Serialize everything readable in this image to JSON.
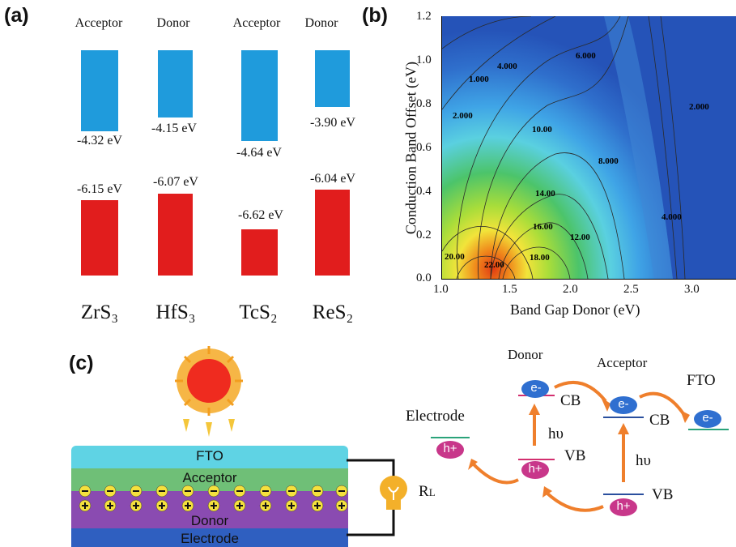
{
  "panel_a": {
    "label": "(a)",
    "headers": [
      "Acceptor",
      "Donor",
      "Acceptor",
      "Donor"
    ],
    "materials": [
      {
        "name": "ZrS₃",
        "cb": "-4.32 eV",
        "vb": "-6.15 eV",
        "cb_value": -4.32,
        "vb_value": -6.15
      },
      {
        "name": "HfS₃",
        "cb": "-4.15 eV",
        "vb": "-6.07 eV",
        "cb_value": -4.15,
        "vb_value": -6.07
      },
      {
        "name": "TcS₂",
        "cb": "-4.64 eV",
        "vb": "-6.62 eV",
        "cb_value": -4.64,
        "vb_value": -6.62
      },
      {
        "name": "ReS₂",
        "cb": "-3.90 eV",
        "vb": "-6.04 eV",
        "cb_value": -3.9,
        "vb_value": -6.04
      }
    ],
    "colors": {
      "cb": "#1f9bdc",
      "vb": "#e11d1d"
    }
  },
  "panel_b": {
    "label": "(b)",
    "xlabel": "Band Gap Donor (eV)",
    "ylabel": "Conduction Band Offset (eV)",
    "xticks": [
      "1.0",
      "1.5",
      "2.0",
      "2.5",
      "3.0"
    ],
    "yticks": [
      "0.0",
      "0.2",
      "0.4",
      "0.6",
      "0.8",
      "1.0",
      "1.2"
    ],
    "contour_labels": [
      "1.000",
      "2.000",
      "4.000",
      "6.000",
      "10.00",
      "8.000",
      "14.00",
      "16.00",
      "12.00",
      "18.00",
      "20.00",
      "22.00",
      "2.000",
      "4.000"
    ]
  },
  "chart_data": {
    "type": "heatmap",
    "title": "",
    "xlabel": "Band Gap Donor (eV)",
    "ylabel": "Conduction Band Offset (eV)",
    "xlim": [
      1.0,
      3.4
    ],
    "ylim": [
      0.0,
      1.2
    ],
    "contour_levels": [
      1,
      2,
      4,
      6,
      8,
      10,
      12,
      14,
      16,
      18,
      20,
      22
    ],
    "peak": {
      "x": 1.4,
      "y": 0.05,
      "value": 22
    },
    "colormap": [
      "#2553b8",
      "#3fa4e6",
      "#5ad0e0",
      "#4cc46a",
      "#a9dd3a",
      "#f2e43a",
      "#f08c1c",
      "#e23a12"
    ]
  },
  "panel_c": {
    "label": "(c)",
    "layers": {
      "fto": "FTO",
      "acceptor": "Acceptor",
      "donor": "Donor",
      "electrode": "Electrode"
    },
    "load": "R",
    "load_sub": "L",
    "diagram": {
      "donor": "Donor",
      "acceptor": "Acceptor",
      "fto": "FTO",
      "electrode": "Electrode",
      "cb": "CB",
      "vb": "VB",
      "hv": "hυ",
      "electron": "e-",
      "hole": "h+"
    }
  }
}
